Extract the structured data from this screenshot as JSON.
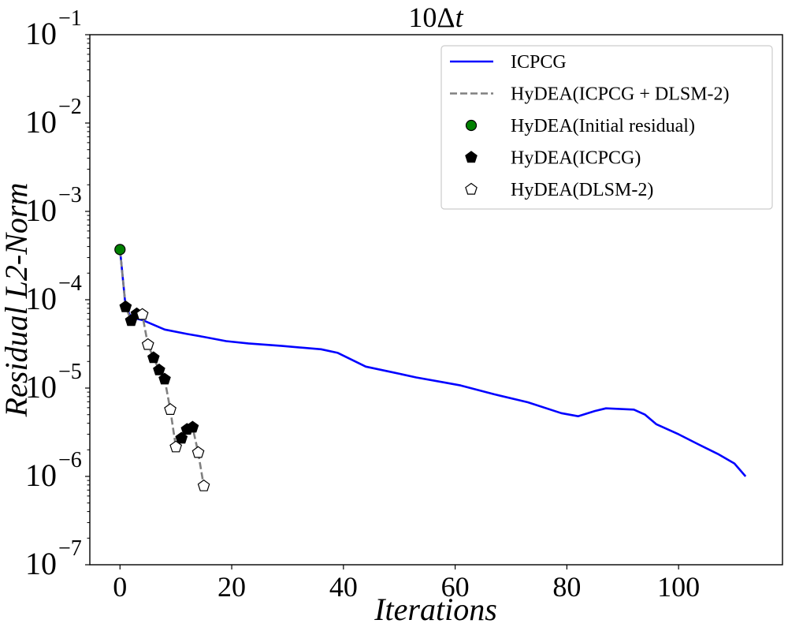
{
  "chart_data": {
    "type": "line",
    "title": "10Δt",
    "title_parts": {
      "base": "10Δ",
      "italic": "t"
    },
    "xlabel": "Iterations",
    "ylabel": "Residual L2-Norm",
    "xlim": [
      -5.4,
      118.6
    ],
    "ylim": [
      1e-07,
      0.1
    ],
    "yscale": "log",
    "grid": false,
    "legend_position": "top-right",
    "x_ticks": [
      0,
      20,
      40,
      60,
      80,
      100
    ],
    "x_tick_labels": [
      "0",
      "20",
      "40",
      "60",
      "80",
      "100"
    ],
    "y_ticks": [
      1e-07,
      1e-06,
      1e-05,
      0.0001,
      0.001,
      0.01,
      0.1
    ],
    "y_tick_labels": [
      {
        "base": "10",
        "exp": "−7"
      },
      {
        "base": "10",
        "exp": "−6"
      },
      {
        "base": "10",
        "exp": "−5"
      },
      {
        "base": "10",
        "exp": "−4"
      },
      {
        "base": "10",
        "exp": "−3"
      },
      {
        "base": "10",
        "exp": "−2"
      },
      {
        "base": "10",
        "exp": "−1"
      }
    ],
    "series": [
      {
        "name": "ICPCG",
        "style": "solid-line",
        "color": "#0000ff",
        "x": [
          0,
          1,
          2,
          4,
          8,
          12,
          15,
          19,
          23,
          29,
          36,
          39,
          44,
          49,
          53,
          58,
          61,
          67,
          73,
          79,
          82,
          85,
          87,
          92,
          94,
          96,
          100,
          103,
          107,
          110,
          112
        ],
        "y": [
          0.00037,
          8.3e-05,
          6.3e-05,
          5.9e-05,
          4.6e-05,
          4.1e-05,
          3.8e-05,
          3.4e-05,
          3.2e-05,
          3e-05,
          2.75e-05,
          2.5e-05,
          1.75e-05,
          1.5e-05,
          1.32e-05,
          1.16e-05,
          1.07e-05,
          8.5e-06,
          6.9e-06,
          5.2e-06,
          4.8e-06,
          5.5e-06,
          5.9e-06,
          5.7e-06,
          5e-06,
          3.9e-06,
          3e-06,
          2.4e-06,
          1.8e-06,
          1.4e-06,
          1e-06
        ]
      },
      {
        "name": "HyDEA(ICPCG + DLSM-2)",
        "style": "dashed-line",
        "color": "#808080",
        "x": [
          0,
          1,
          2,
          3,
          4,
          5,
          6,
          7,
          8,
          9,
          10,
          11,
          12,
          13,
          14,
          15
        ],
        "y": [
          0.00037,
          8.3e-05,
          5.8e-05,
          6.9e-05,
          6.8e-05,
          3.1e-05,
          2.2e-05,
          1.6e-05,
          1.26e-05,
          5.7e-06,
          2.15e-06,
          2.7e-06,
          3.4e-06,
          3.6e-06,
          1.86e-06,
          7.8e-07
        ]
      },
      {
        "name": "HyDEA(Initial residual)",
        "style": "circle-marker",
        "color": "#008000",
        "x": [
          0
        ],
        "y": [
          0.00037
        ]
      },
      {
        "name": "HyDEA(ICPCG)",
        "style": "filled-pentagon-marker",
        "color": "#000000",
        "x": [
          1,
          2,
          3,
          6,
          7,
          8,
          11,
          12,
          13
        ],
        "y": [
          8.3e-05,
          5.8e-05,
          6.9e-05,
          2.2e-05,
          1.6e-05,
          1.26e-05,
          2.7e-06,
          3.4e-06,
          3.6e-06
        ]
      },
      {
        "name": "HyDEA(DLSM-2)",
        "style": "open-pentagon-marker",
        "color": "#ffffff",
        "x": [
          4,
          5,
          9,
          10,
          14,
          15
        ],
        "y": [
          6.8e-05,
          3.1e-05,
          5.7e-06,
          2.15e-06,
          1.86e-06,
          7.8e-07
        ]
      }
    ]
  }
}
